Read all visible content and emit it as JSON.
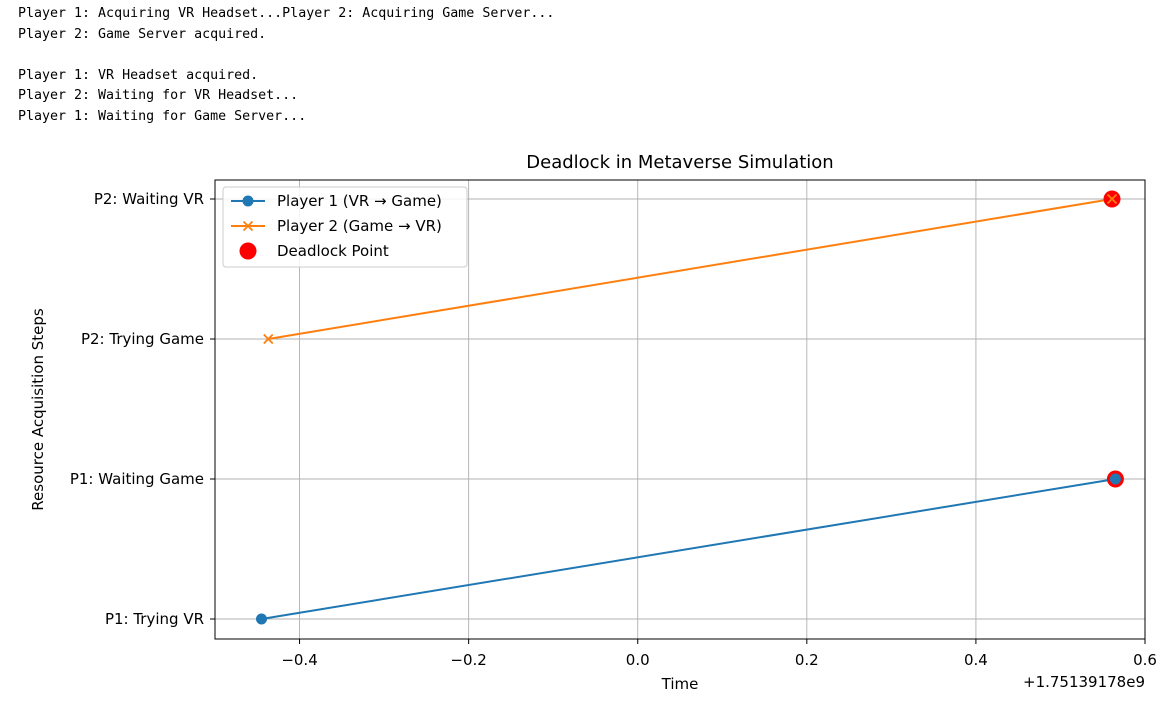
{
  "console": {
    "lines": [
      "Player 1: Acquiring VR Headset...Player 2: Acquiring Game Server...",
      "Player 2: Game Server acquired.",
      "",
      "Player 1: VR Headset acquired.",
      "Player 2: Waiting for VR Headset...",
      "Player 1: Waiting for Game Server..."
    ]
  },
  "chart_data": {
    "type": "line",
    "title": "Deadlock in Metaverse Simulation",
    "xlabel": "Time",
    "ylabel": "Resource Acquisition Steps",
    "x_offset_label": "+1.75139178e9",
    "xlim": [
      -0.5,
      0.6
    ],
    "x_ticks": [
      -0.4,
      -0.2,
      0.0,
      0.2,
      0.4,
      0.6
    ],
    "x_tick_labels": [
      "−0.4",
      "−0.2",
      "0.0",
      "0.2",
      "0.4",
      "0.6"
    ],
    "y_categories": [
      "P1: Trying VR",
      "P1: Waiting Game",
      "P2: Trying Game",
      "P2: Waiting VR"
    ],
    "grid": true,
    "legend_position": "top-left",
    "series": [
      {
        "name": "Player 1 (VR → Game)",
        "marker": "circle",
        "color": "#1f77b4",
        "points": [
          {
            "x": -0.445,
            "y": "P1: Trying VR"
          },
          {
            "x": 0.565,
            "y": "P1: Waiting Game"
          }
        ]
      },
      {
        "name": "Player 2 (Game → VR)",
        "marker": "x",
        "color": "#ff7f0e",
        "points": [
          {
            "x": -0.437,
            "y": "P2: Trying Game"
          },
          {
            "x": 0.561,
            "y": "P2: Waiting VR"
          }
        ]
      }
    ],
    "deadlock": {
      "name": "Deadlock Point",
      "color": "#ff0000",
      "points": [
        {
          "x": 0.565,
          "y": "P1: Waiting Game"
        },
        {
          "x": 0.561,
          "y": "P2: Waiting VR"
        }
      ]
    }
  }
}
